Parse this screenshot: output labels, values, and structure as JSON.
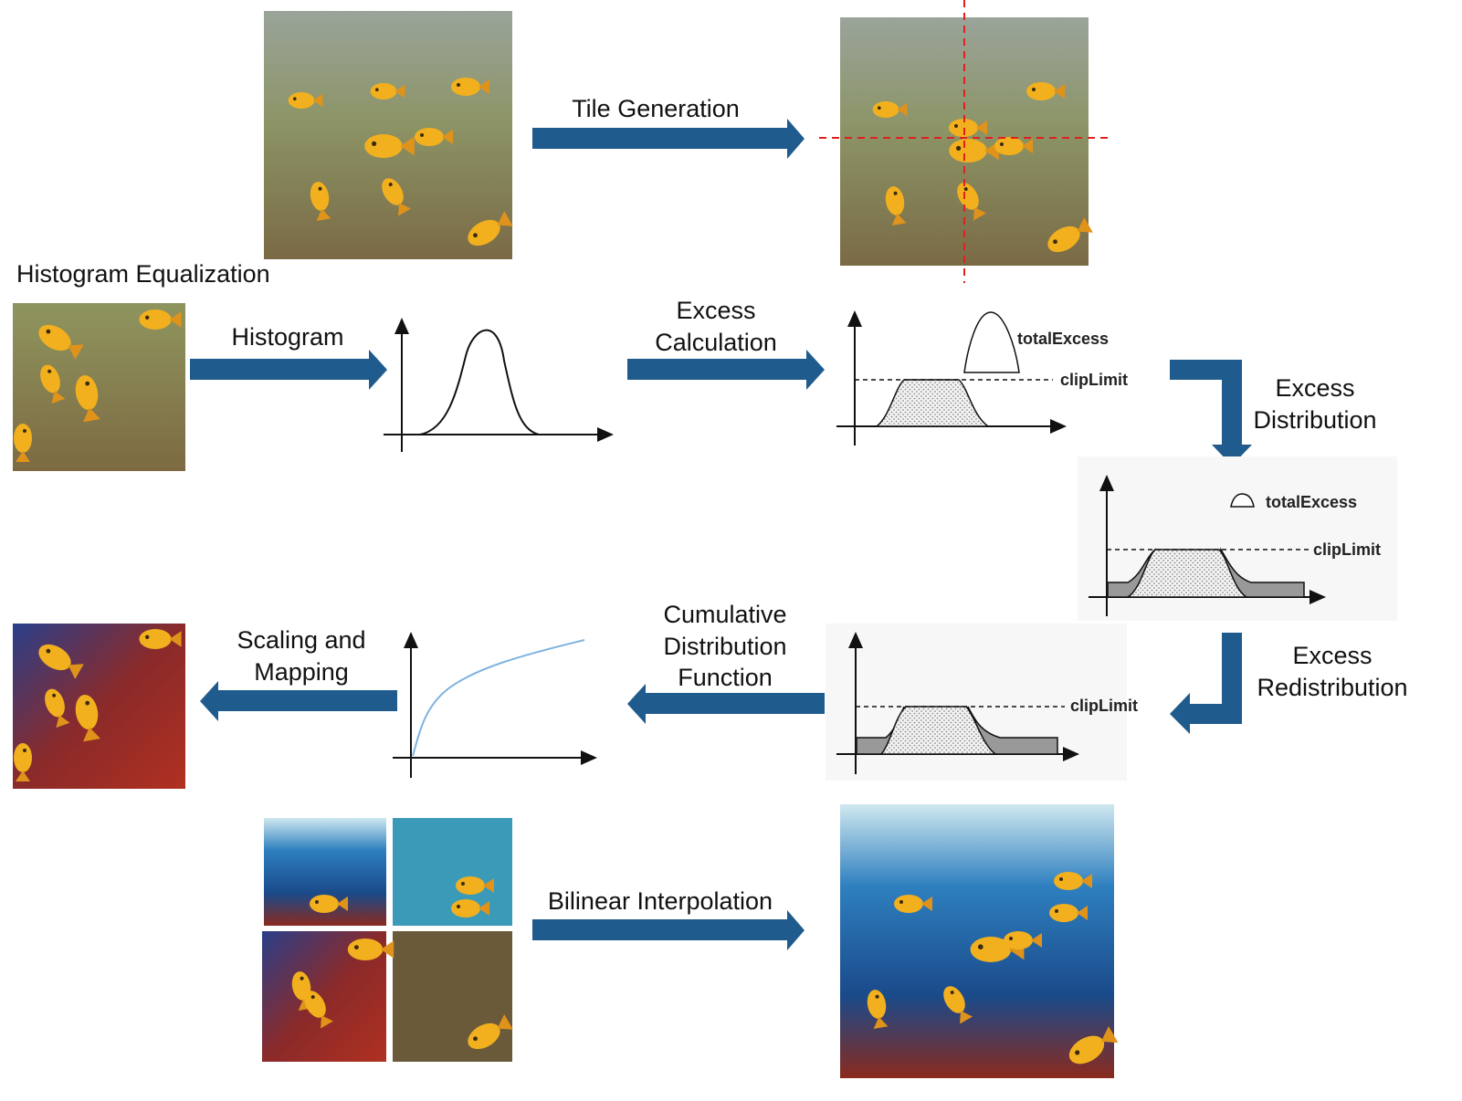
{
  "steps": {
    "tile_generation": "Tile Generation",
    "histogram_equalization": "Histogram Equalization",
    "histogram": "Histogram",
    "excess_calculation_line1": "Excess",
    "excess_calculation_line2": "Calculation",
    "excess_distribution_line1": "Excess",
    "excess_distribution_line2": "Distribution",
    "excess_redistribution_line1": "Excess",
    "excess_redistribution_line2": "Redistribution",
    "cdf_line1": "Cumulative",
    "cdf_line2": "Distribution",
    "cdf_line3": "Function",
    "scaling_line1": "Scaling and",
    "scaling_line2": "Mapping",
    "bilinear_interpolation": "Bilinear Interpolation"
  },
  "plot_labels": {
    "total_excess": "totalExcess",
    "clip_limit": "clipLimit"
  },
  "colors": {
    "arrow": "#1f5b8c",
    "tile_grid": "#e02020",
    "cdf_curve": "#7fb3e0",
    "hazy_water": "#8f9a6a",
    "enhanced_water": "#1e5aa8",
    "fish": "#f2b01e"
  }
}
